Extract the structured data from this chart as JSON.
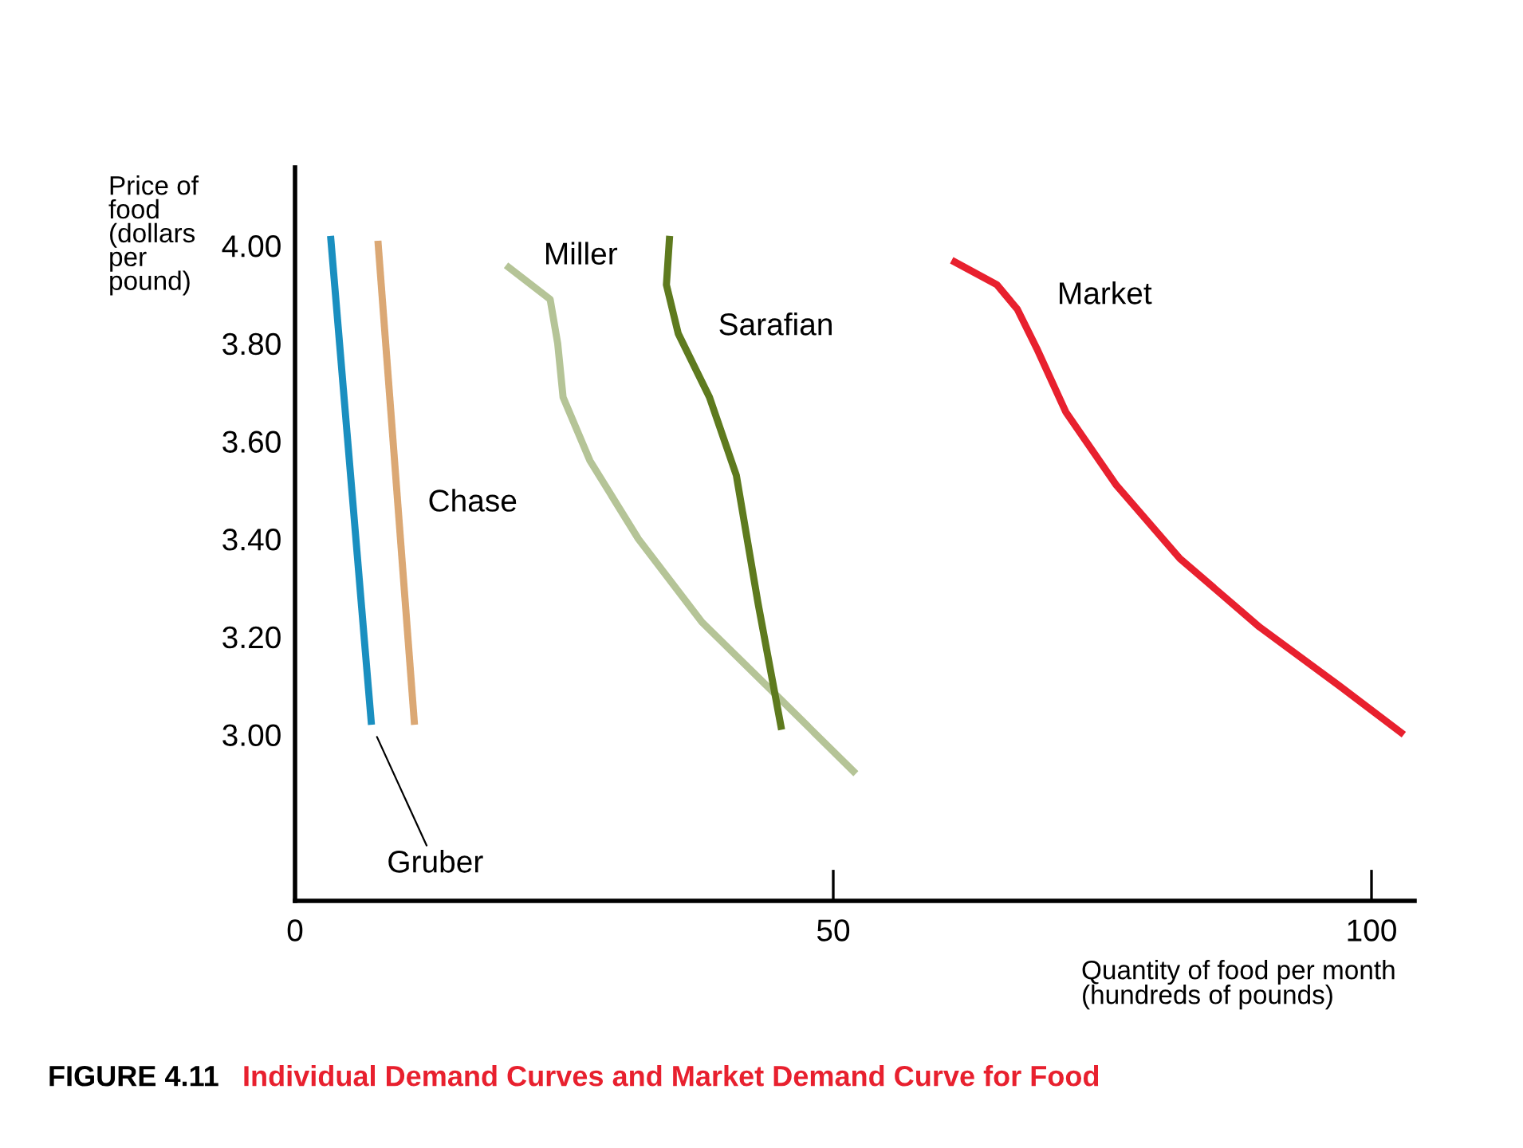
{
  "chart_data": {
    "type": "line",
    "title": "FIGURE 4.11",
    "subtitle": "Individual Demand Curves and Market Demand Curve for Food",
    "xlabel": "Quantity of food per month\n(hundreds of pounds)",
    "ylabel": "Price of\nfood\n(dollars\nper\npound)",
    "xlim": [
      0,
      104
    ],
    "xticks": [
      0,
      50,
      100
    ],
    "ylim": [
      2.66,
      4.16
    ],
    "yticks": [
      {
        "value": 3,
        "label": "3.00"
      },
      {
        "value": 3.2,
        "label": "3.20"
      },
      {
        "value": 3.4,
        "label": "3.40"
      },
      {
        "value": 3.6,
        "label": "3.60"
      },
      {
        "value": 3.8,
        "label": "3.80"
      },
      {
        "value": 4,
        "label": "4.00"
      }
    ],
    "grid": false,
    "legend": false,
    "marker": "none",
    "line_style": "solid",
    "series": [
      {
        "name": "Gruber",
        "color": "#1a8fc0",
        "x": [
          3.3,
          7.1
        ],
        "values": [
          4.02,
          3.02
        ]
      },
      {
        "name": "Chase",
        "color": "#dba874",
        "x": [
          7.7,
          11.1
        ],
        "values": [
          4.01,
          3.02
        ]
      },
      {
        "name": "Miller",
        "color": "#b5c497",
        "x": [
          19.6,
          23.7,
          24.4,
          24.9,
          27.4,
          31.9,
          37.8,
          45.2,
          52.1
        ],
        "values": [
          3.96,
          3.89,
          3.8,
          3.69,
          3.56,
          3.4,
          3.23,
          3.07,
          2.92
        ]
      },
      {
        "name": "Sarafian",
        "color": "#5e7a1e",
        "x": [
          34.8,
          34.5,
          35.6,
          38.5,
          41.0,
          43.0,
          45.2
        ],
        "values": [
          4.02,
          3.92,
          3.82,
          3.69,
          3.53,
          3.27,
          3.01
        ]
      },
      {
        "name": "Market",
        "color": "#e8202e",
        "x": [
          61.0,
          65.2,
          67.1,
          68.9,
          71.6,
          76.3,
          82.2,
          89.6,
          97.0,
          103.0
        ],
        "values": [
          3.97,
          3.92,
          3.87,
          3.79,
          3.66,
          3.51,
          3.36,
          3.22,
          3.1,
          3.0
        ]
      }
    ]
  }
}
